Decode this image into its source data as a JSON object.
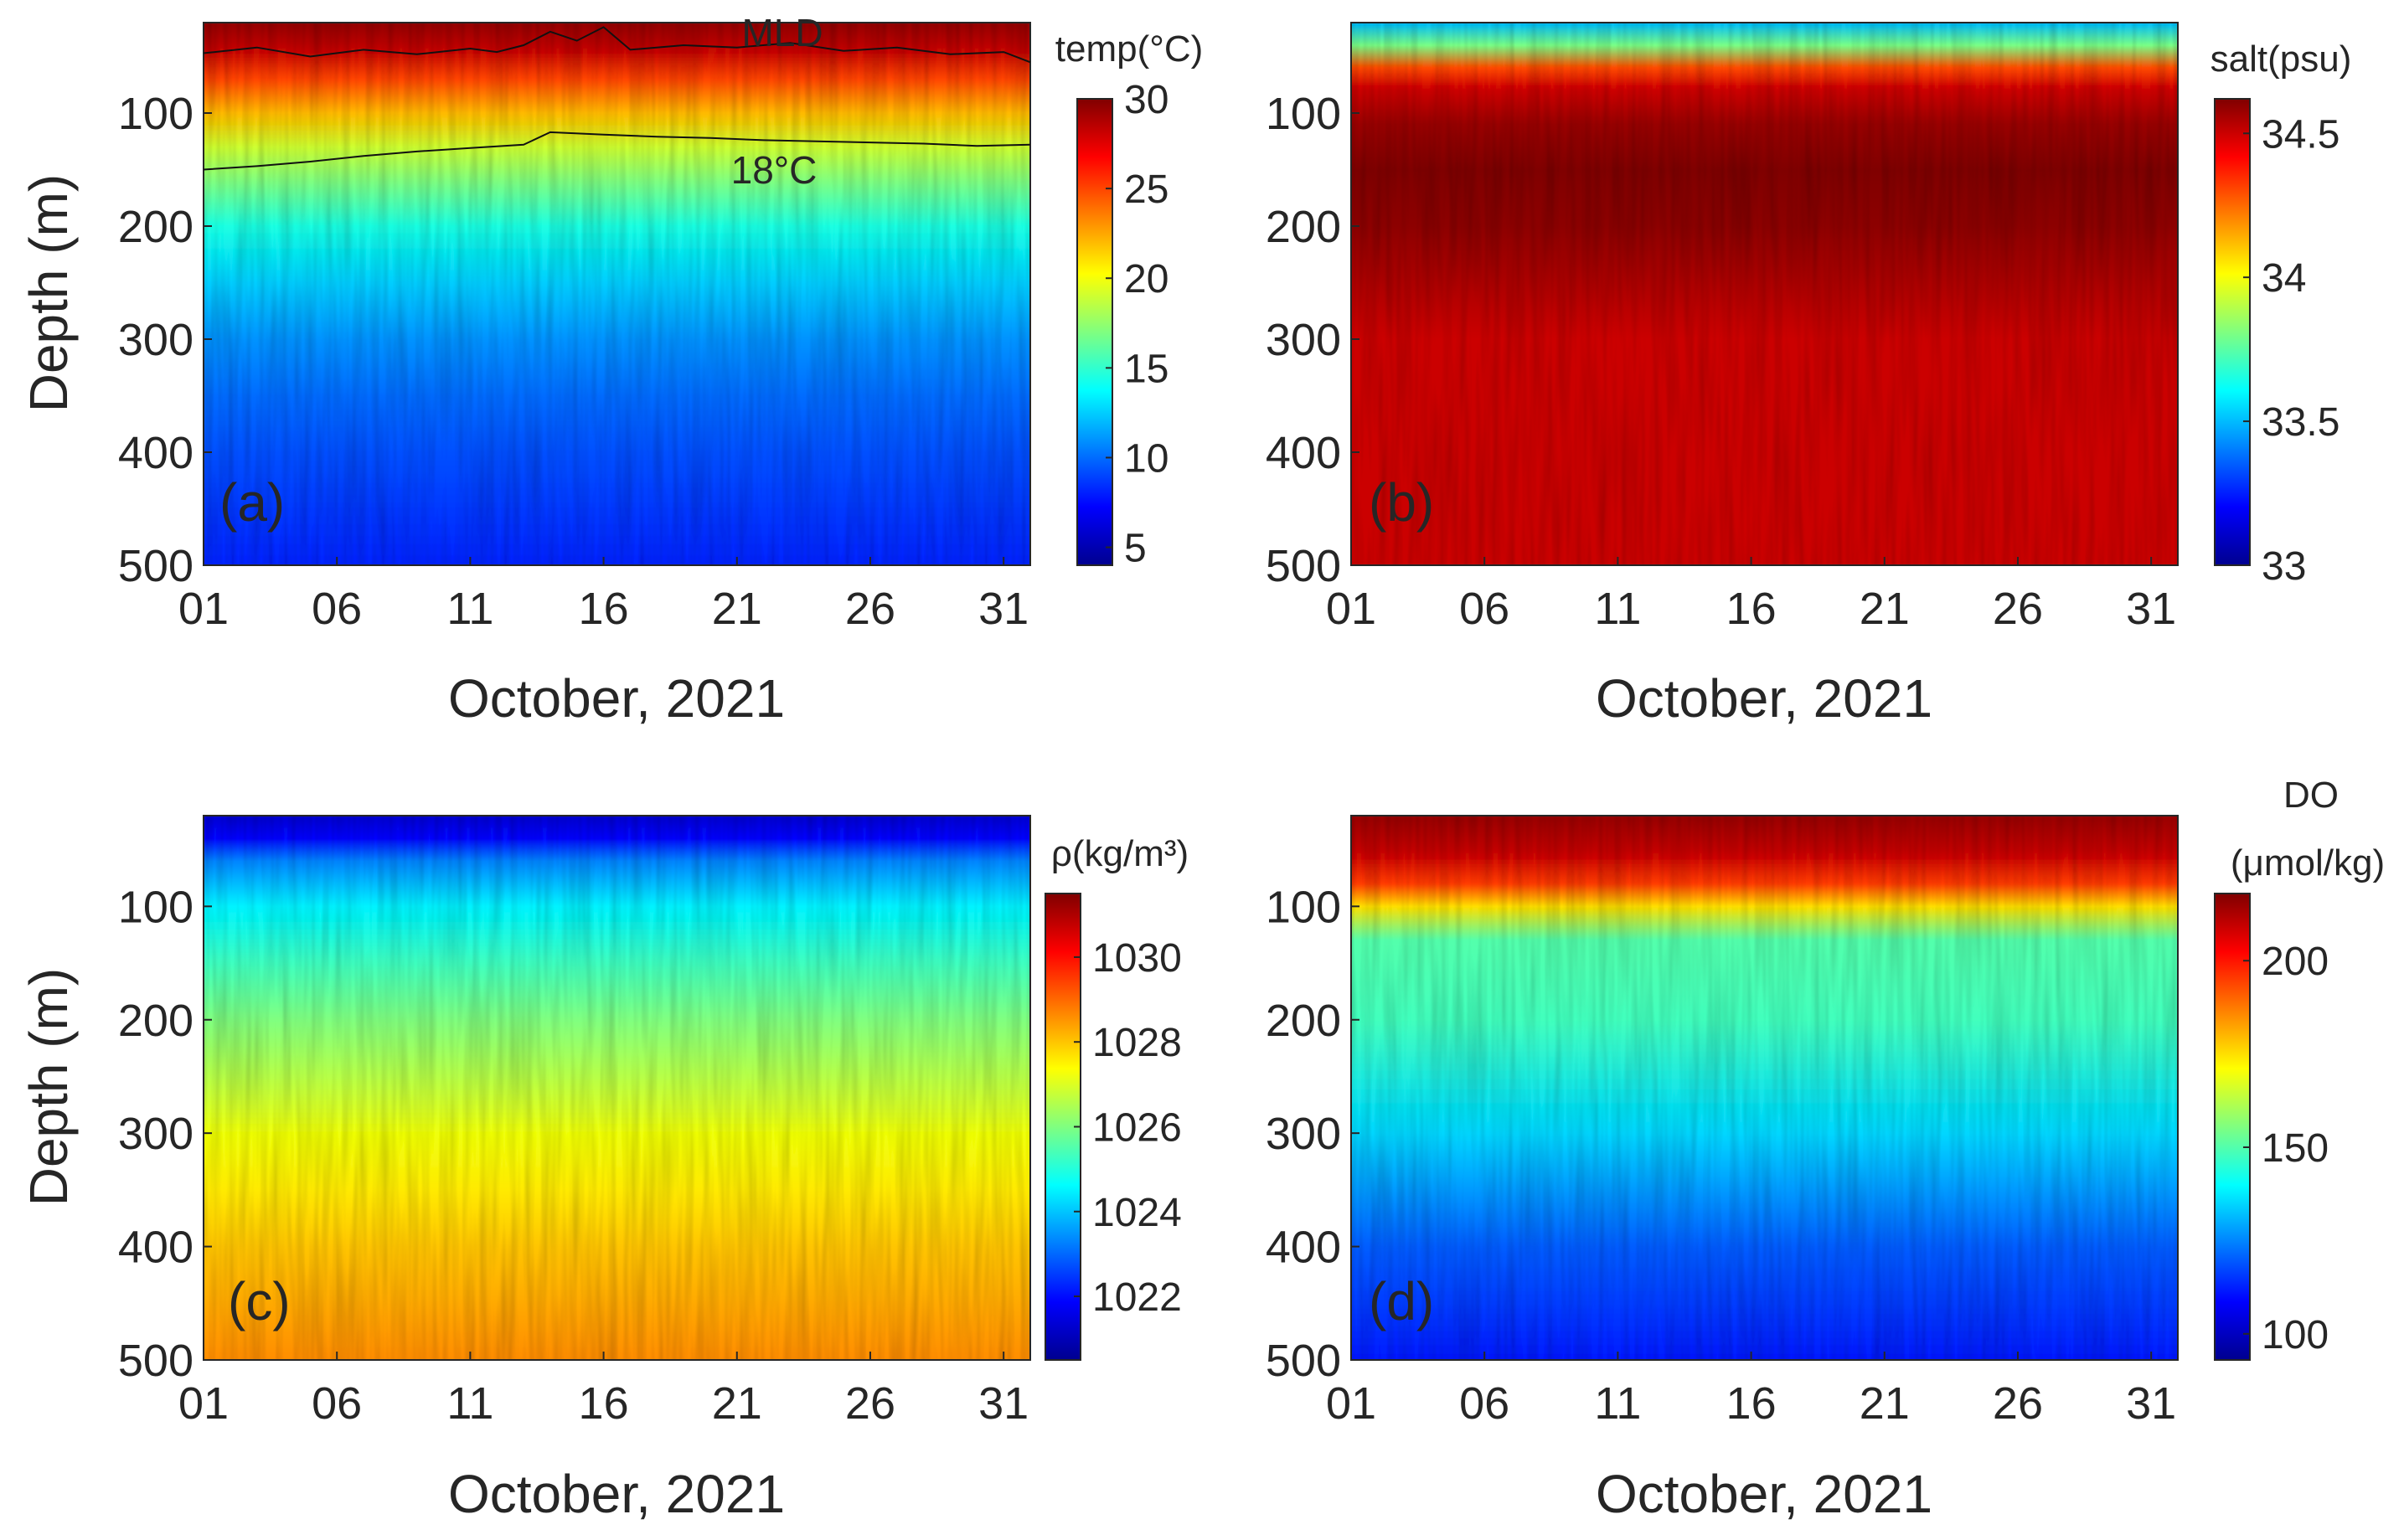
{
  "chart_data": [
    {
      "type": "heatmap",
      "panel_label": "(a)",
      "variable": "temperature",
      "xlabel": "October, 2021",
      "ylabel": "Depth (m)",
      "x_tick_labels": [
        "01",
        "06",
        "11",
        "16",
        "21",
        "26",
        "31"
      ],
      "x_tick_values": [
        1,
        6,
        11,
        16,
        21,
        26,
        31
      ],
      "xlim": [
        1,
        32
      ],
      "y_tick_labels": [
        "100",
        "200",
        "300",
        "400",
        "500"
      ],
      "y_tick_values": [
        100,
        200,
        300,
        400,
        500
      ],
      "ylim": [
        20,
        500
      ],
      "y_reversed": true,
      "colorbar": {
        "title": "temp(°C)",
        "range": [
          4,
          30
        ],
        "tick_labels": [
          "5",
          "10",
          "15",
          "20",
          "25",
          "30"
        ],
        "tick_values": [
          5,
          10,
          15,
          20,
          25,
          30
        ]
      },
      "depths": [
        20,
        40,
        70,
        100,
        130,
        160,
        200,
        250,
        300,
        350,
        400,
        450,
        500
      ],
      "profile": [
        29.5,
        28.5,
        25,
        22,
        19,
        17,
        14.5,
        12.5,
        11,
        10,
        9.3,
        8.7,
        8.2
      ],
      "annotations": [
        {
          "text": "MLD",
          "x": 21.2,
          "y": 30
        },
        {
          "text": "18°C",
          "x": 21.5,
          "y": 150
        }
      ],
      "contour_lines": [
        {
          "name": "MLD",
          "x": [
            1,
            3,
            5,
            7,
            9,
            11,
            12,
            13,
            14,
            15,
            16,
            17,
            19,
            21,
            23,
            25,
            27,
            29,
            31,
            32
          ],
          "y": [
            47,
            42,
            50,
            44,
            48,
            43,
            46,
            40,
            28,
            36,
            24,
            44,
            40,
            42,
            38,
            45,
            42,
            48,
            46,
            55
          ]
        },
        {
          "name": "18°C",
          "x": [
            1,
            3,
            5,
            7,
            9,
            11,
            13,
            14,
            16,
            18,
            20,
            22,
            24,
            26,
            28,
            30,
            32
          ],
          "y": [
            150,
            147,
            143,
            138,
            134,
            131,
            128,
            117,
            119,
            121,
            122,
            124,
            125,
            126,
            127,
            129,
            128
          ]
        }
      ]
    },
    {
      "type": "heatmap",
      "panel_label": "(b)",
      "variable": "salinity",
      "xlabel": "October, 2021",
      "ylabel": "",
      "x_tick_labels": [
        "01",
        "06",
        "11",
        "16",
        "21",
        "26",
        "31"
      ],
      "x_tick_values": [
        1,
        6,
        11,
        16,
        21,
        26,
        31
      ],
      "xlim": [
        1,
        32
      ],
      "y_tick_labels": [
        "100",
        "200",
        "300",
        "400",
        "500"
      ],
      "y_tick_values": [
        100,
        200,
        300,
        400,
        500
      ],
      "ylim": [
        20,
        500
      ],
      "y_reversed": true,
      "colorbar": {
        "title": "salt(psu)",
        "range": [
          33,
          34.62
        ],
        "tick_labels": [
          "33",
          "33.5",
          "34",
          "34.5"
        ],
        "tick_values": [
          33,
          33.5,
          34,
          34.5
        ]
      },
      "depths": [
        20,
        40,
        60,
        80,
        110,
        150,
        200,
        250,
        300,
        400,
        500
      ],
      "profile": [
        33.5,
        33.8,
        34.3,
        34.5,
        34.58,
        34.62,
        34.6,
        34.55,
        34.5,
        34.5,
        34.5
      ]
    },
    {
      "type": "heatmap",
      "panel_label": "(c)",
      "variable": "density",
      "xlabel": "October, 2021",
      "ylabel": "Depth (m)",
      "x_tick_labels": [
        "01",
        "06",
        "11",
        "16",
        "21",
        "26",
        "31"
      ],
      "x_tick_values": [
        1,
        6,
        11,
        16,
        21,
        26,
        31
      ],
      "xlim": [
        1,
        32
      ],
      "y_tick_labels": [
        "100",
        "200",
        "300",
        "400",
        "500"
      ],
      "y_tick_values": [
        100,
        200,
        300,
        400,
        500
      ],
      "ylim": [
        20,
        500
      ],
      "y_reversed": true,
      "colorbar": {
        "title": "ρ(kg/m³)",
        "range": [
          1020.5,
          1031.5
        ],
        "tick_labels": [
          "1022",
          "1024",
          "1026",
          "1028",
          "1030"
        ],
        "tick_values": [
          1022,
          1024,
          1026,
          1028,
          1030
        ]
      },
      "depths": [
        20,
        40,
        60,
        100,
        150,
        200,
        250,
        300,
        350,
        400,
        450,
        500
      ],
      "profile": [
        1021.3,
        1022.0,
        1023.3,
        1024.5,
        1025.3,
        1026.0,
        1026.6,
        1027.2,
        1027.6,
        1028.0,
        1028.3,
        1028.6
      ]
    },
    {
      "type": "heatmap",
      "panel_label": "(d)",
      "variable": "dissolved oxygen",
      "xlabel": "October, 2021",
      "ylabel": "",
      "x_tick_labels": [
        "01",
        "06",
        "11",
        "16",
        "21",
        "26",
        "31"
      ],
      "x_tick_values": [
        1,
        6,
        11,
        16,
        21,
        26,
        31
      ],
      "xlim": [
        1,
        32
      ],
      "y_tick_labels": [
        "100",
        "200",
        "300",
        "400",
        "500"
      ],
      "y_tick_values": [
        100,
        200,
        300,
        400,
        500
      ],
      "ylim": [
        20,
        500
      ],
      "y_reversed": true,
      "colorbar": {
        "title_line1": "DO",
        "title_line2": "(μmol/kg)",
        "range": [
          93,
          218
        ],
        "tick_labels": [
          "100",
          "150",
          "200"
        ],
        "tick_values": [
          100,
          150,
          200
        ]
      },
      "depths": [
        20,
        50,
        80,
        100,
        130,
        200,
        300,
        400,
        500
      ],
      "profile": [
        215,
        210,
        195,
        175,
        150,
        148,
        135,
        120,
        112
      ]
    }
  ]
}
